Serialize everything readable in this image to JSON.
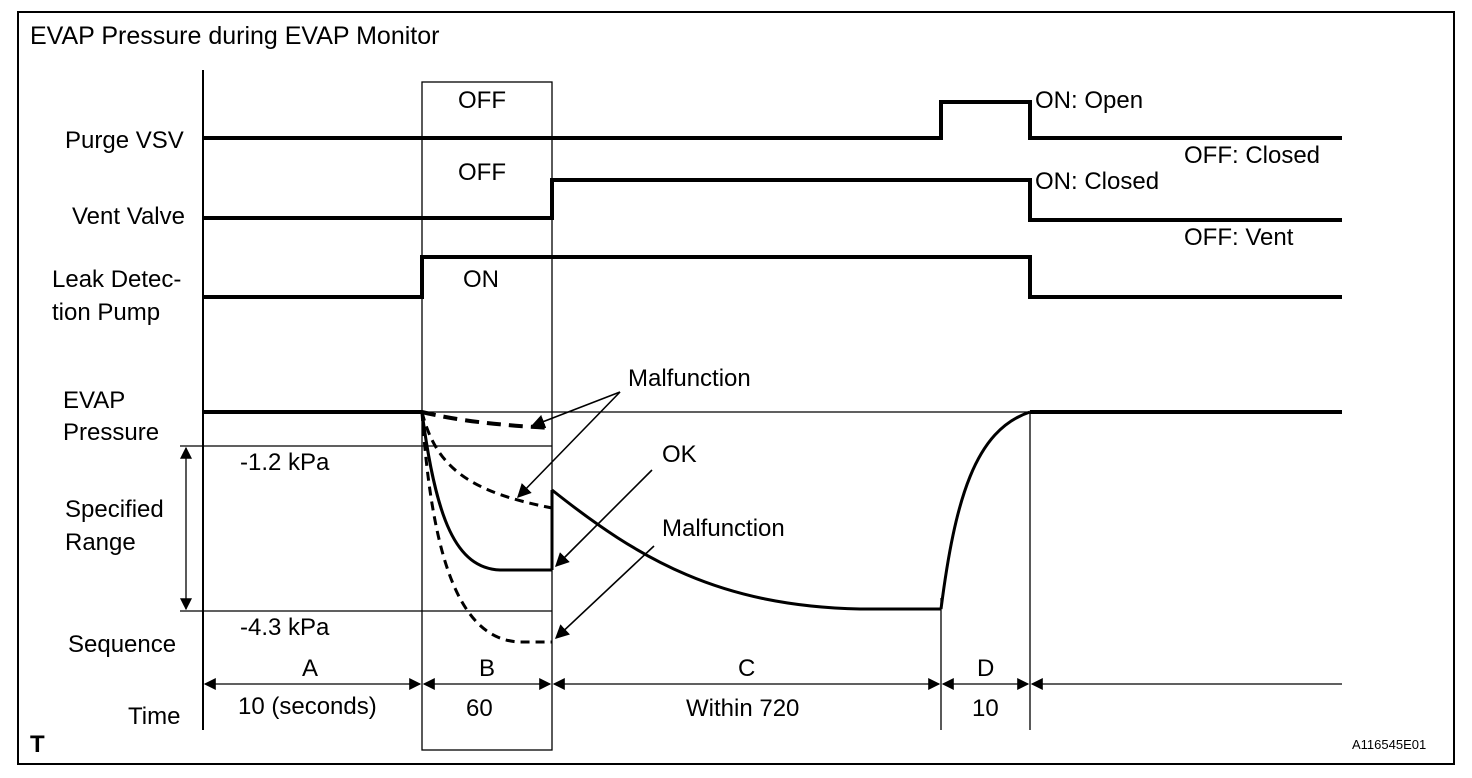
{
  "title": "EVAP Pressure during EVAP Monitor",
  "rows": {
    "purge_vsv": "Purge VSV",
    "vent_valve": "Vent Valve",
    "leak_pump_line1": "Leak Detec-",
    "leak_pump_line2": "tion Pump",
    "evap_line1": "EVAP",
    "evap_line2": "Pressure",
    "specified_line1": "Specified",
    "specified_line2": "Range",
    "sequence": "Sequence",
    "time": "Time"
  },
  "states": {
    "purge_off": "OFF",
    "vent_off": "OFF",
    "pump_on": "ON",
    "purge_on_open": "ON: Open",
    "purge_off_closed": "OFF: Closed",
    "vent_on_closed": "ON: Closed",
    "vent_off_vent": "OFF: Vent"
  },
  "pressure": {
    "upper_limit": "-1.2 kPa",
    "lower_limit": "-4.3 kPa"
  },
  "annotations": {
    "malfunction_top": "Malfunction",
    "ok": "OK",
    "malfunction_bottom": "Malfunction"
  },
  "sequence": [
    {
      "id": "A",
      "time": "10 (seconds)"
    },
    {
      "id": "B",
      "time": "60"
    },
    {
      "id": "C",
      "time": "Within 720"
    },
    {
      "id": "D",
      "time": "10"
    }
  ],
  "corner_mark": "T",
  "figure_code": "A116545E01"
}
